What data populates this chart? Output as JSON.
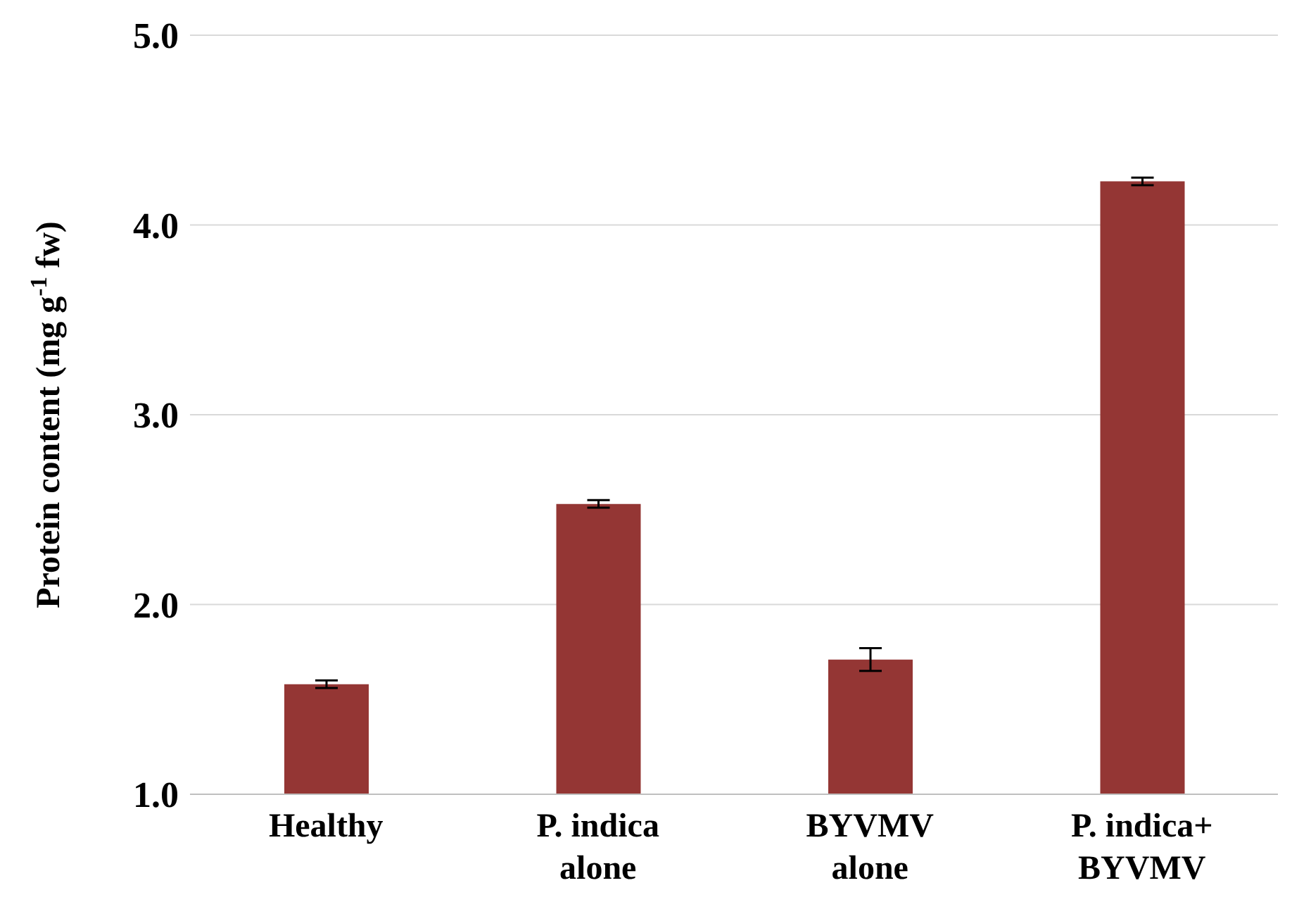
{
  "chart_data": {
    "type": "bar",
    "ylabel": "Protein content (mg g$^{-1}$ fw)",
    "categories": [
      "Healthy",
      "P. indica alone",
      "BYVMV alone",
      "P. indica+ BYVMV"
    ],
    "values": [
      1.58,
      2.53,
      1.71,
      4.23
    ],
    "errors": [
      0.02,
      0.02,
      0.06,
      0.02
    ],
    "color": "#943634",
    "ylim": [
      1,
      5
    ],
    "yticks": [
      {
        "value": 1,
        "label": "1.0"
      },
      {
        "value": 2,
        "label": "2.0"
      },
      {
        "value": 3,
        "label": "3.0"
      },
      {
        "value": 4,
        "label": "4.0"
      },
      {
        "value": 5,
        "label": "5.0"
      }
    ],
    "grid": "y"
  }
}
